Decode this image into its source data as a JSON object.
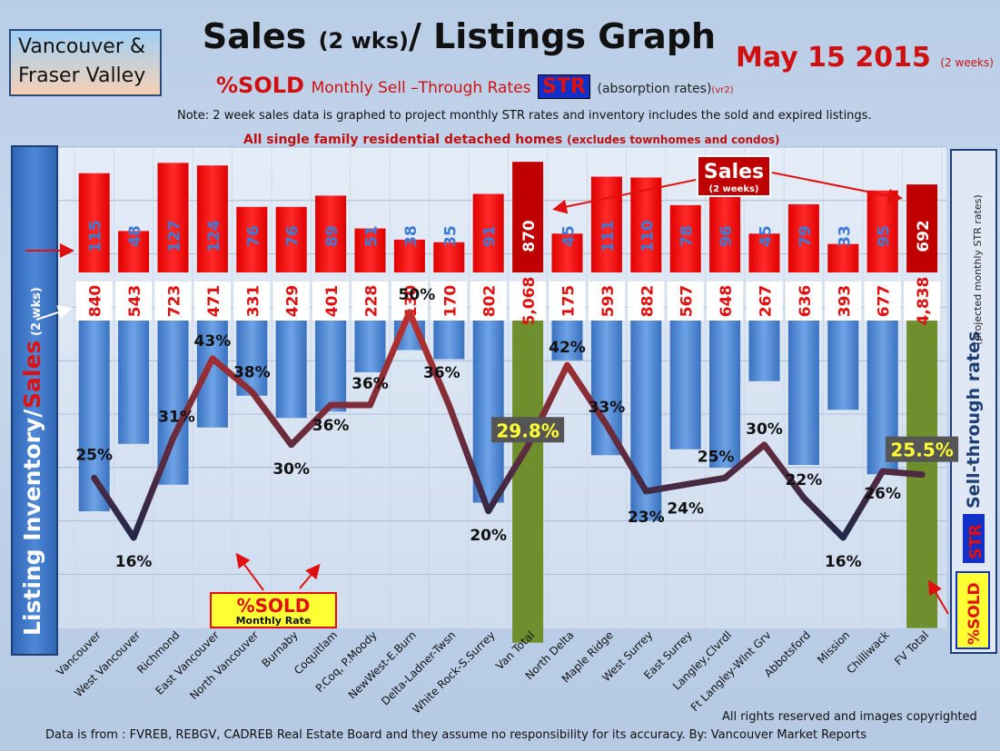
{
  "header": {
    "region_line1": "Vancouver &",
    "region_line2": "Fraser Valley",
    "title_main": "Sales ",
    "title_small": "(2 wks)",
    "title_rest": "/ Listings Graph",
    "date": "May 15 2015",
    "date_note": "(2 weeks)",
    "subtitle_sold": "%SOLD",
    "subtitle_monthly": "Monthly ",
    "subtitle_rates": "Sell –Through Rates",
    "subtitle_str": "STR",
    "subtitle_abs": "(absorption rates)",
    "subtitle_ver": "(vr2)",
    "note": "Note: 2 week sales data is graphed to project monthly STR rates and inventory includes the sold and expired listings.",
    "focus": "All single family residential detached homes",
    "focus_paren": "(excludes townhomes and condos)"
  },
  "axis_labels": {
    "left": "Listing Inventory/",
    "left_sales": "Sales",
    "left_wks": "(2 wks)",
    "right": "Sell-through rates",
    "right_note": "(projected monthly STR rates)",
    "right_str": "STR",
    "right_sold": "%SOLD"
  },
  "annotations": {
    "sales_label": "Sales",
    "sales_sub": "(2 weeks)",
    "sold_box": "%SOLD",
    "sold_box_sub": "Monthly Rate"
  },
  "footer": {
    "rights": "All rights reserved and  images copyrighted",
    "source": "Data is from : FVREB, REBGV, CADREB Real Estate Board and they assume no responsibility for its accuracy. By: Vancouver Market Reports"
  },
  "colors": {
    "sales_bar": "#ff1a1a",
    "total_sales_bar": "#c00000",
    "listings_bar": "#4a86d4",
    "total_listings_bar": "#6f8f2f",
    "line_light": "#c0302c",
    "line_dark": "#22284a"
  },
  "chart_data": {
    "type": "bar",
    "categories": [
      "Vancouver",
      "West Vancouver",
      "Richmond",
      "East Vancouver",
      "North Vancouver",
      "Burnaby",
      "Coquitlam",
      "P.Coq, P.Moody",
      "NewWest-E.Burn",
      "Delta-Ladner-Twsn",
      "White Rock-S.Surrey",
      "Van Total",
      "North Delta",
      "Maple Ridge",
      "West Surrey",
      "East Surrey",
      "Langley,Clvrdl",
      "Ft Langley-Wlnt Grv",
      "Abbotsford",
      "Mission",
      "Chilliwack",
      "FV Total"
    ],
    "series": [
      {
        "name": "Sales",
        "values": [
          115,
          48,
          127,
          124,
          76,
          76,
          89,
          51,
          38,
          35,
          91,
          870,
          45,
          111,
          110,
          78,
          96,
          45,
          79,
          33,
          95,
          692
        ]
      },
      {
        "name": "Listing Inventory",
        "values": [
          840,
          543,
          723,
          471,
          331,
          429,
          401,
          228,
          130,
          170,
          802,
          5068,
          175,
          593,
          882,
          567,
          648,
          267,
          636,
          393,
          677,
          4838
        ]
      },
      {
        "name": "Sell-through rates",
        "values": [
          25,
          16,
          31,
          43,
          38,
          30,
          36,
          36,
          50,
          36,
          20,
          29.8,
          42,
          33,
          23,
          24,
          25,
          30,
          22,
          16,
          26,
          25.5
        ]
      }
    ],
    "str_labels": [
      "25%",
      "16%",
      "31%",
      "43%",
      "38%",
      "30%",
      "36%",
      "36%",
      "50%",
      "36%",
      "20%",
      "29.8%",
      "42%",
      "33%",
      "23%",
      "24%",
      "25%",
      "30%",
      "22%",
      "16%",
      "26%",
      "25.5%"
    ],
    "xlabel": "",
    "ylabel": "Listing Inventory/ Sales (2 wks)"
  }
}
